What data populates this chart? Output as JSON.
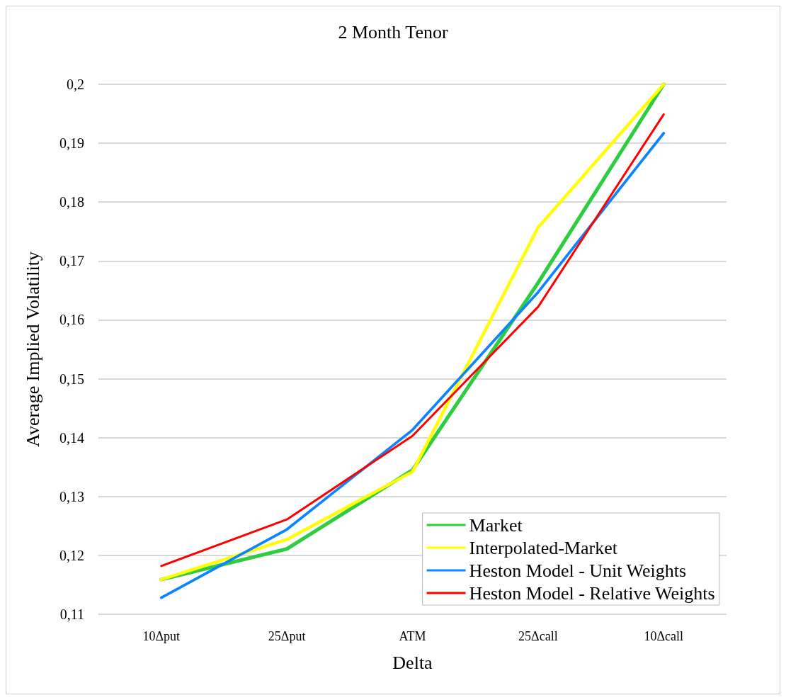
{
  "chart_data": {
    "type": "line",
    "title": "2 Month Tenor",
    "xlabel": "Delta",
    "ylabel": "Average Implied Volatility",
    "categories": [
      "10Δput",
      "25Δput",
      "ATM",
      "25Δcall",
      "10Δcall"
    ],
    "series": [
      {
        "name": "Market",
        "color": "#2ecc40",
        "values": [
          0.1159,
          0.1211,
          0.1345,
          0.1663,
          0.2
        ]
      },
      {
        "name": "Interpolated-Market",
        "color": "#ffff00",
        "values": [
          0.1159,
          0.1227,
          0.1342,
          0.1757,
          0.2
        ]
      },
      {
        "name": "Heston Model - Unit Weights",
        "color": "#0a84ff",
        "values": [
          0.1128,
          0.1244,
          0.1413,
          0.1647,
          0.1917
        ]
      },
      {
        "name": "Heston Model - Relative Weights",
        "color": "#ff0000",
        "values": [
          0.1182,
          0.1261,
          0.1403,
          0.1622,
          0.1949
        ]
      }
    ],
    "ylim": [
      0.11,
      0.2
    ],
    "yticks": [
      {
        "value": 0.11,
        "label": "0,11"
      },
      {
        "value": 0.12,
        "label": "0,12"
      },
      {
        "value": 0.13,
        "label": "0,13"
      },
      {
        "value": 0.14,
        "label": "0,14"
      },
      {
        "value": 0.15,
        "label": "0,15"
      },
      {
        "value": 0.16,
        "label": "0,16"
      },
      {
        "value": 0.17,
        "label": "0,17"
      },
      {
        "value": 0.18,
        "label": "0,18"
      },
      {
        "value": 0.19,
        "label": "0,19"
      },
      {
        "value": 0.2,
        "label": "0,2"
      }
    ],
    "grid": "y",
    "legend": "bottom right",
    "marker": "none",
    "line_style": "solid"
  }
}
